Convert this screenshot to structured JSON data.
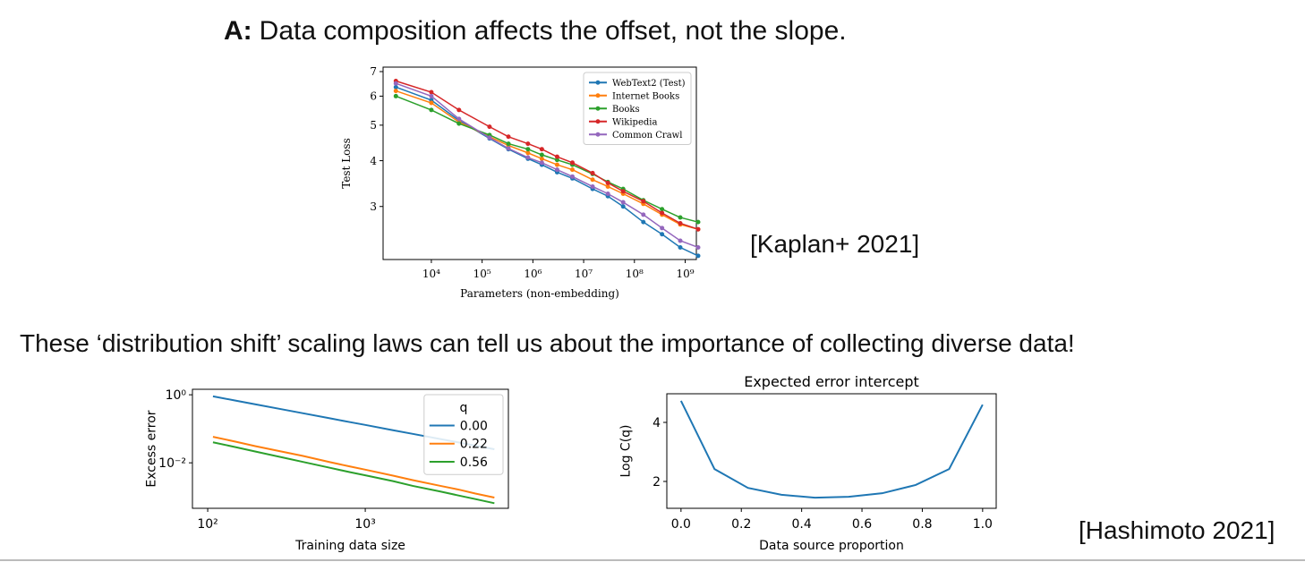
{
  "heading": {
    "label": "A:",
    "text": "Data composition affects the offset, not the slope."
  },
  "subtitle": "These ‘distribution shift’ scaling laws can tell us about the importance of collecting diverse data!",
  "citations": [
    "[Kaplan+ 2021]",
    "[Hashimoto 2021]"
  ],
  "chart_data": [
    {
      "type": "line",
      "markers": true,
      "xscale": "log",
      "yscale": "log",
      "x_label": "Parameters (non-embedding)",
      "y_label": "Test Loss",
      "x": [
        2000,
        10000,
        35000,
        140000,
        330000,
        800000,
        1500000,
        3000000,
        6000000,
        15000000,
        30000000,
        60000000,
        150000000,
        350000000,
        800000000,
        1800000000
      ],
      "series": [
        {
          "name": "WebText2 (Test)",
          "color": "#1f77b4",
          "values": [
            6.35,
            5.85,
            5.15,
            4.6,
            4.3,
            4.05,
            3.9,
            3.72,
            3.58,
            3.35,
            3.2,
            3.0,
            2.72,
            2.52,
            2.32,
            2.2
          ]
        },
        {
          "name": "Internet Books",
          "color": "#ff7f0e",
          "values": [
            6.2,
            5.75,
            5.1,
            4.65,
            4.4,
            4.2,
            4.05,
            3.9,
            3.78,
            3.55,
            3.4,
            3.25,
            3.05,
            2.85,
            2.68,
            2.6
          ]
        },
        {
          "name": "Books",
          "color": "#2ca02c",
          "values": [
            6.0,
            5.5,
            5.05,
            4.7,
            4.45,
            4.3,
            4.15,
            4.02,
            3.9,
            3.68,
            3.5,
            3.35,
            3.12,
            2.95,
            2.8,
            2.72
          ]
        },
        {
          "name": "Wikipedia",
          "color": "#d62728",
          "values": [
            6.6,
            6.15,
            5.5,
            4.95,
            4.65,
            4.45,
            4.3,
            4.1,
            3.95,
            3.7,
            3.48,
            3.3,
            3.1,
            2.88,
            2.7,
            2.6
          ]
        },
        {
          "name": "Common Crawl",
          "color": "#9467bd",
          "values": [
            6.5,
            6.0,
            5.2,
            4.62,
            4.32,
            4.08,
            3.95,
            3.78,
            3.62,
            3.4,
            3.25,
            3.08,
            2.85,
            2.62,
            2.42,
            2.32
          ]
        }
      ],
      "xlim": [
        1120,
        1660000000
      ],
      "xticks": [
        {
          "value": 10000,
          "label": "10⁴"
        },
        {
          "value": 100000,
          "label": "10⁵"
        },
        {
          "value": 1000000,
          "label": "10⁶"
        },
        {
          "value": 10000000,
          "label": "10⁷"
        },
        {
          "value": 100000000,
          "label": "10⁸"
        },
        {
          "value": 1000000000,
          "label": "10⁹"
        }
      ],
      "ylim": [
        2.15,
        7.2
      ],
      "yticks": [
        3,
        4,
        5,
        6,
        7
      ],
      "legend": "upper right"
    },
    {
      "type": "line",
      "xscale": "log",
      "yscale": "log",
      "x_label": "Training data size",
      "y_label": "Excess error",
      "legend_title": "q",
      "x": [
        108,
        150,
        200,
        300,
        400,
        600,
        800,
        1000,
        1500,
        2000,
        3000,
        4000,
        5000,
        6600
      ],
      "series": [
        {
          "name": "0.00",
          "color": "#1f77b4",
          "values": [
            0.9,
            0.676,
            0.526,
            0.37,
            0.288,
            0.202,
            0.157,
            0.13,
            0.091,
            0.071,
            0.05,
            0.039,
            0.032,
            0.025
          ]
        },
        {
          "name": "0.22",
          "color": "#ff7f0e",
          "values": [
            0.058,
            0.042,
            0.031,
            0.021,
            0.016,
            0.0104,
            0.0078,
            0.0063,
            0.0042,
            0.0031,
            0.0021,
            0.0016,
            0.00125,
            0.00095
          ]
        },
        {
          "name": "0.56",
          "color": "#2ca02c",
          "values": [
            0.04,
            0.029,
            0.0215,
            0.0143,
            0.0107,
            0.0071,
            0.0053,
            0.0043,
            0.0029,
            0.0021,
            0.00143,
            0.00107,
            0.00086,
            0.00065
          ]
        }
      ],
      "xlim": [
        80,
        8100
      ],
      "xticks": [
        {
          "value": 100,
          "label": "10²"
        },
        {
          "value": 1000,
          "label": "10³"
        }
      ],
      "ylim": [
        0.00046,
        1.45
      ],
      "yticks": [
        {
          "value": 1,
          "label": "10⁰"
        },
        {
          "value": 0.01,
          "label": "10⁻²"
        }
      ],
      "legend": "upper right"
    },
    {
      "type": "line",
      "title": "Expected error intercept",
      "x_label": "Data source proportion",
      "y_label": "Log C(q)",
      "x": [
        0,
        0.111,
        0.222,
        0.333,
        0.444,
        0.556,
        0.667,
        0.778,
        0.889,
        1
      ],
      "series": [
        {
          "color": "#1f77b4",
          "values": [
            4.73,
            2.42,
            1.78,
            1.55,
            1.45,
            1.48,
            1.6,
            1.88,
            2.42,
            4.6
          ]
        }
      ],
      "xlim": [
        -0.047,
        1.045
      ],
      "xticks": [
        {
          "value": 0,
          "label": "0.0"
        },
        0.2,
        0.4,
        0.6,
        0.8,
        {
          "value": 1,
          "label": "1.0"
        }
      ],
      "ylim": [
        1.09,
        4.97
      ],
      "yticks": [
        2,
        4
      ]
    }
  ]
}
